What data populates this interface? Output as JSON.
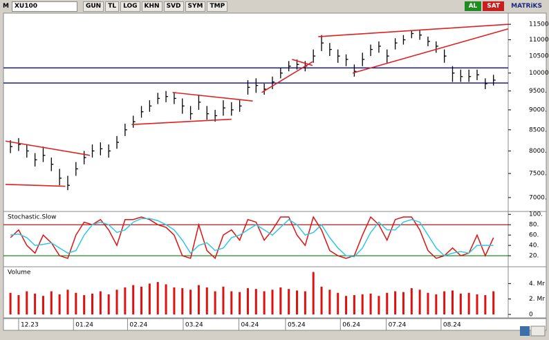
{
  "toolbar": {
    "symbol": "XU100",
    "buttons": [
      "GUN",
      "TL",
      "LOG",
      "KHN",
      "SVD",
      "SYM",
      "TMP"
    ],
    "buy": "AL",
    "sell": "SAT",
    "brand": "MATRiKS"
  },
  "chart_data": [
    {
      "type": "ohlc",
      "color": "#000000",
      "log_scale": true,
      "xlim": [
        -0.6,
        60.8
      ],
      "ylim": [
        6740,
        11850
      ],
      "yticks": [
        {
          "value": 7000,
          "label": "7000."
        },
        {
          "value": 7500,
          "label": "7500."
        },
        {
          "value": 8000,
          "label": "8000."
        },
        {
          "value": 8500,
          "label": "8500."
        },
        {
          "value": 9000,
          "label": "9000."
        },
        {
          "value": 9500,
          "label": "9500."
        },
        {
          "value": 10000,
          "label": "10000."
        },
        {
          "value": 10500,
          "label": "10500."
        },
        {
          "value": 11000,
          "label": "11000."
        },
        {
          "value": 11500,
          "label": "11500."
        }
      ],
      "high": [
        8250,
        8300,
        8150,
        7950,
        8100,
        7850,
        7600,
        7450,
        7750,
        8000,
        8150,
        8200,
        8150,
        8350,
        8650,
        8850,
        9100,
        9250,
        9450,
        9500,
        9450,
        9300,
        9100,
        9400,
        9100,
        9000,
        9250,
        9200,
        9250,
        9800,
        9850,
        9700,
        9900,
        10150,
        10350,
        10400,
        10350,
        10700,
        11150,
        10900,
        10700,
        10550,
        10250,
        10600,
        10850,
        10950,
        10700,
        11050,
        11150,
        11300,
        11300,
        11100,
        10950,
        10700,
        10200,
        10100,
        10100,
        10100,
        9850,
        9950
      ],
      "low": [
        7950,
        8000,
        7850,
        7650,
        7750,
        7550,
        7250,
        7150,
        7450,
        7700,
        7850,
        7900,
        7850,
        8050,
        8350,
        8550,
        8800,
        8950,
        9150,
        9200,
        9150,
        8900,
        8750,
        9000,
        8750,
        8700,
        8850,
        8850,
        8950,
        9400,
        9450,
        9400,
        9550,
        9850,
        10050,
        10100,
        10050,
        10300,
        10650,
        10500,
        10300,
        10200,
        9900,
        10200,
        10500,
        10600,
        10300,
        10700,
        10850,
        11050,
        11000,
        10800,
        10600,
        10300,
        9750,
        9750,
        9750,
        9800,
        9550,
        9650
      ],
      "close": [
        8100,
        8150,
        8000,
        7800,
        7900,
        7700,
        7400,
        7250,
        7600,
        7850,
        8000,
        8050,
        8000,
        8200,
        8500,
        8700,
        8950,
        9100,
        9300,
        9350,
        9300,
        9100,
        8900,
        9200,
        8900,
        8850,
        9050,
        9000,
        9100,
        9600,
        9650,
        9550,
        9750,
        10000,
        10200,
        10250,
        10200,
        10500,
        10900,
        10700,
        10500,
        10400,
        10050,
        10400,
        10700,
        10800,
        10500,
        10900,
        11000,
        11200,
        11150,
        10950,
        10800,
        10500,
        10000,
        9900,
        9900,
        9950,
        9700,
        9800
      ],
      "trendline_color": "#e02020",
      "trendlines": [
        {
          "x": [
            -0.6,
            9.7
          ],
          "y": [
            8230,
            7900
          ]
        },
        {
          "x": [
            -0.6,
            6.7
          ],
          "y": [
            7270,
            7230
          ]
        },
        {
          "x": [
            14.8,
            27.0
          ],
          "y": [
            8630,
            8760
          ]
        },
        {
          "x": [
            19.8,
            29.6
          ],
          "y": [
            9460,
            9230
          ]
        },
        {
          "x": [
            30.7,
            36.9
          ],
          "y": [
            9460,
            10330
          ]
        },
        {
          "x": [
            34.4,
            36.9
          ],
          "y": [
            10400,
            10220
          ]
        },
        {
          "x": [
            37.6,
            60.8
          ],
          "y": [
            11100,
            11500
          ]
        },
        {
          "x": [
            41.8,
            60.8
          ],
          "y": [
            10000,
            11350
          ]
        }
      ],
      "hline_color": "#1a1aa0",
      "hlines": [
        10150,
        9720
      ]
    },
    {
      "type": "line",
      "title": "Stochastic.Slow",
      "xlim": [
        -0.6,
        60.8
      ],
      "ylim": [
        0,
        103
      ],
      "yticks": [
        {
          "value": 20,
          "label": "20."
        },
        {
          "value": 40,
          "label": "40."
        },
        {
          "value": 60,
          "label": "60."
        },
        {
          "value": 80,
          "label": "80."
        },
        {
          "value": 100,
          "label": "100."
        }
      ],
      "levels": [
        {
          "value": 80,
          "color": "#a00000"
        },
        {
          "value": 20,
          "color": "#008000"
        }
      ],
      "series": [
        {
          "color": "#e01010",
          "values": [
            55,
            70,
            40,
            25,
            60,
            45,
            20,
            15,
            60,
            85,
            80,
            90,
            70,
            40,
            90,
            90,
            95,
            90,
            80,
            75,
            60,
            20,
            15,
            80,
            30,
            15,
            60,
            70,
            50,
            90,
            85,
            50,
            70,
            95,
            95,
            60,
            40,
            95,
            70,
            30,
            20,
            15,
            20,
            60,
            95,
            80,
            50,
            90,
            95,
            95,
            70,
            30,
            15,
            20,
            35,
            20,
            25,
            60,
            20,
            55
          ]
        },
        {
          "color": "#30c8e0",
          "values": [
            60,
            62,
            55,
            40,
            42,
            45,
            35,
            25,
            30,
            60,
            80,
            85,
            80,
            65,
            70,
            85,
            92,
            92,
            88,
            80,
            70,
            50,
            25,
            40,
            45,
            30,
            35,
            55,
            60,
            70,
            80,
            70,
            60,
            75,
            90,
            80,
            60,
            65,
            80,
            55,
            35,
            20,
            18,
            35,
            65,
            85,
            70,
            70,
            85,
            90,
            85,
            60,
            35,
            20,
            25,
            28,
            25,
            40,
            40,
            40
          ]
        }
      ]
    },
    {
      "type": "bar",
      "title": "Volume",
      "color": "#e01010",
      "xlim": [
        -0.6,
        60.8
      ],
      "ylim": [
        0,
        6
      ],
      "yticks": [
        0,
        {
          "value": 2,
          "label": "2. Mr"
        },
        {
          "value": 4,
          "label": "4. Mr"
        }
      ],
      "xticks": [
        {
          "value": 1.0,
          "label": "12.23"
        },
        {
          "value": 7.7,
          "label": "01.24"
        },
        {
          "value": 14.3,
          "label": "02.24"
        },
        {
          "value": 21.1,
          "label": "03.24"
        },
        {
          "value": 27.9,
          "label": "04.24"
        },
        {
          "value": 33.6,
          "label": "05.24"
        },
        {
          "value": 40.3,
          "label": "06.24"
        },
        {
          "value": 45.9,
          "label": "07.24"
        },
        {
          "value": 52.6,
          "label": "08.24"
        }
      ],
      "values": [
        2.8,
        2.5,
        3,
        2.7,
        2.4,
        3,
        2.6,
        3.2,
        2.8,
        2.5,
        2.7,
        3,
        2.6,
        3.2,
        3.5,
        3.8,
        3.6,
        4,
        4.2,
        3.9,
        3.5,
        3.4,
        3.2,
        3.8,
        3.5,
        3,
        3.6,
        3,
        2.9,
        3.4,
        3.3,
        3,
        3.2,
        3.5,
        3.3,
        3.1,
        3,
        5.5,
        3.6,
        3.2,
        2.8,
        2.4,
        2.5,
        2.6,
        2.7,
        2.4,
        2.8,
        3,
        2.9,
        3.4,
        3.2,
        2.8,
        2.6,
        3,
        3.1,
        2.7,
        2.8,
        2.6,
        2.5,
        3
      ]
    }
  ]
}
